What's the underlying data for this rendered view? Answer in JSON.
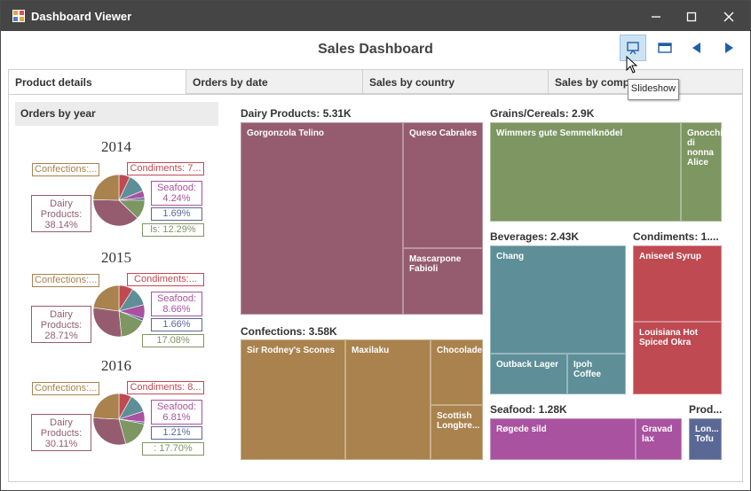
{
  "window": {
    "title": "Dashboard Viewer",
    "minimize": "—",
    "maximize": "☐",
    "close": "✕"
  },
  "dashboard": {
    "title": "Sales Dashboard",
    "tooltip": "Slideshow"
  },
  "tabs": [
    "Product details",
    "Orders by date",
    "Sales by country",
    "Sales by comp"
  ],
  "left_panel": {
    "title": "Orders by year",
    "years": [
      {
        "year": "2014",
        "labels": {
          "confections": "Confections:...",
          "condiments": "Condiments: 7...",
          "seafood_a": "Seafood:",
          "seafood_b": "4.24%",
          "small": "1.69%",
          "dairy_a": "Dairy",
          "dairy_b": "Products:",
          "dairy_c": "38.14%",
          "grains": "ls: 12.29%"
        }
      },
      {
        "year": "2015",
        "labels": {
          "confections": "Confections:...",
          "condiments": "Condiments:...",
          "seafood_a": "Seafood:",
          "seafood_b": "8.66%",
          "small": "1.66%",
          "dairy_a": "Dairy",
          "dairy_b": "Products:",
          "dairy_c": "28.71%",
          "grains": "17.08%"
        }
      },
      {
        "year": "2016",
        "labels": {
          "confections": "Confections:...",
          "condiments": "Condiments: 8...",
          "seafood_a": "Seafood:",
          "seafood_b": "6.81%",
          "small": "1.21%",
          "dairy_a": "Dairy",
          "dairy_b": "Products:",
          "dairy_c": "30.11%",
          "grains": ": 17.70%"
        }
      }
    ]
  },
  "treemap": {
    "groups": {
      "dairy": "Dairy Products: 5.31K",
      "grains": "Grains/Cereals: 2.9K",
      "beverages": "Beverages: 2.43K",
      "condiments": "Condiments: 1....",
      "confections": "Confections: 3.58K",
      "seafood": "Seafood: 1.28K",
      "produce": "Prod..."
    },
    "tiles": {
      "gorgonzola": "Gorgonzola Telino",
      "queso": "Queso Cabrales",
      "mascarpone": "Mascarpone Fabioli",
      "wimmers": "Wimmers gute Semmelknödel",
      "gnocchi": "Gnocchi di nonna Alice",
      "chang": "Chang",
      "outback": "Outback Lager",
      "ipoh": "Ipoh Coffee",
      "aniseed": "Aniseed Syrup",
      "louisiana": "Louisiana Hot Spiced Okra",
      "rodney": "Sir Rodney's Scones",
      "maxilaku": "Maxilaku",
      "chocolade": "Chocolade",
      "scottish": "Scottish Longbre...",
      "rogede": "Røgede sild",
      "gravad": "Gravad lax",
      "longlife": "Lon... Tofu"
    }
  },
  "colors": {
    "dairy": "#955c70",
    "grains": "#7d9662",
    "beverages": "#5e8f98",
    "condiments": "#bf4a52",
    "confections": "#a9824d",
    "seafood": "#a852a0",
    "produce": "#5a6896"
  },
  "pie_data": [
    {
      "year": "2014",
      "dairy": 38.14,
      "grains": 12.29,
      "seafood": 4.24,
      "small": 1.69,
      "condiments": 7.0
    },
    {
      "year": "2015",
      "dairy": 28.71,
      "grains": 17.08,
      "seafood": 8.66,
      "small": 1.66,
      "condiments": 9.0
    },
    {
      "year": "2016",
      "dairy": 30.11,
      "grains": 17.7,
      "seafood": 6.81,
      "small": 1.21,
      "condiments": 8.0
    }
  ]
}
